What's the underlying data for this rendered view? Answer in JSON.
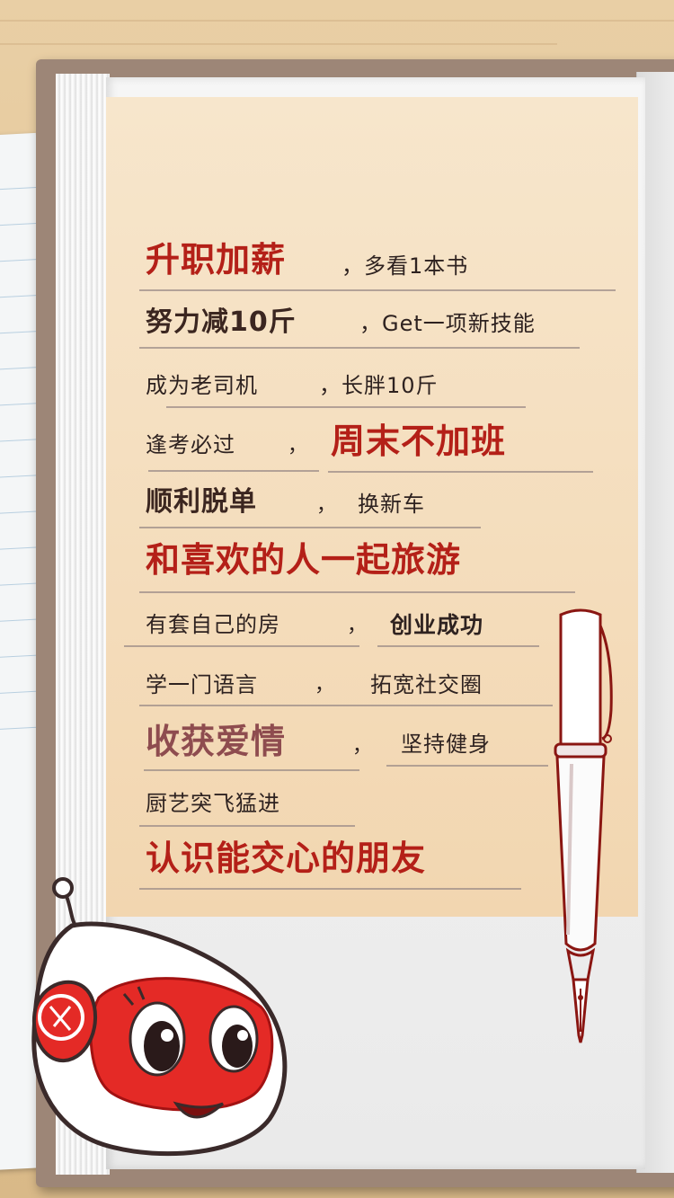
{
  "wishes": [
    {
      "text": "升职加薪",
      "style": "big"
    },
    {
      "text": "，多看1本书",
      "style": "sm"
    },
    {
      "text": "努力减10斤",
      "style": "mid"
    },
    {
      "text": "，Get一项新技能",
      "style": "sm"
    },
    {
      "text": "成为老司机",
      "style": "sm"
    },
    {
      "text": "，长胖10斤",
      "style": "sm"
    },
    {
      "text": "逢考必过",
      "style": "sm"
    },
    {
      "text": "周末不加班",
      "style": "big"
    },
    {
      "text": "顺利脱单",
      "style": "mid"
    },
    {
      "text": "换新车",
      "style": "sm"
    },
    {
      "text": "和喜欢的人一起旅游",
      "style": "big"
    },
    {
      "text": "有套自己的房",
      "style": "sm"
    },
    {
      "text": "创业成功",
      "style": "smb"
    },
    {
      "text": "学一门语言",
      "style": "sm"
    },
    {
      "text": "拓宽社交圈",
      "style": "sm"
    },
    {
      "text": "收获爱情",
      "style": "muted"
    },
    {
      "text": "坚持健身",
      "style": "sm"
    },
    {
      "text": "厨艺突飞猛进",
      "style": "sm"
    },
    {
      "text": "认识能交心的朋友",
      "style": "big"
    }
  ],
  "separator": "，",
  "colors": {
    "accent_red": "#b42018",
    "text_dark": "#2e2220",
    "muted_red": "#8e4c4f",
    "paper": "#f4dcba",
    "cover": "#9d8677"
  },
  "icons": [
    "fountain-pen-icon",
    "mascot-character-icon"
  ]
}
